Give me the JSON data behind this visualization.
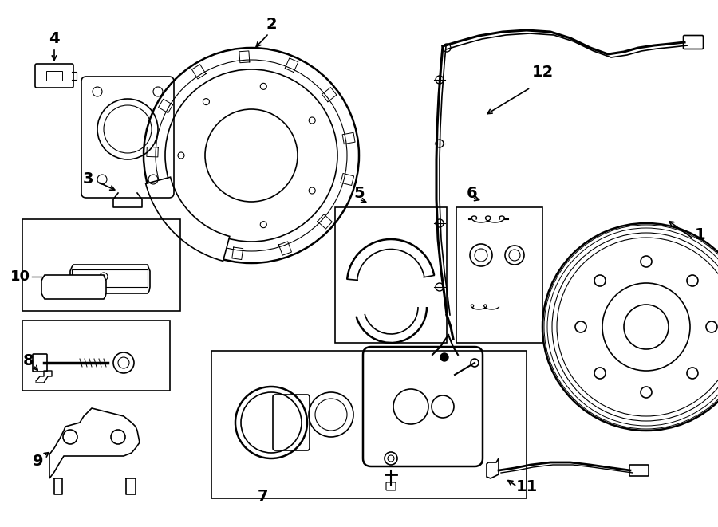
{
  "bg_color": "#ffffff",
  "line_color": "#000000",
  "lw_main": 1.2,
  "lw_thick": 1.8
}
